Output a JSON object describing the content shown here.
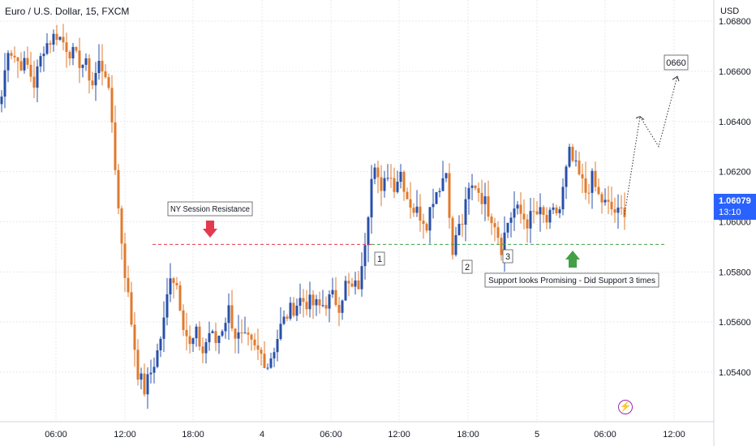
{
  "symbol_title": "Euro / U.S. Dollar, 15, FXCM",
  "currency": "USD",
  "current_price": "1.06079",
  "countdown": "13:10",
  "colors": {
    "up": "#2950a8",
    "down": "#e07a2c",
    "resistance": "#e53950",
    "support": "#43a047",
    "current_price_tag": "#2962ff",
    "grid": "#e6e9f0",
    "flash_icon": "#9c27b0"
  },
  "icons": {
    "flash": "lightning-bolt-icon"
  },
  "chart_data": {
    "type": "candlestick",
    "y_axis": {
      "ticks": [
        "1.06800",
        "1.06600",
        "1.06400",
        "1.06200",
        "1.06000",
        "1.05800",
        "1.05600",
        "1.05400"
      ],
      "ylim": [
        1.0524,
        1.0688
      ]
    },
    "x_axis": {
      "ticks": [
        "06:00",
        "12:00",
        "18:00",
        "4",
        "06:00",
        "12:00",
        "18:00",
        "5",
        "06:00",
        "12:00"
      ]
    },
    "grid": true,
    "levels": [
      {
        "name": "NY Session Resistance",
        "price": 1.0591,
        "style": "dashed",
        "color": "#e53950"
      },
      {
        "name": "Support",
        "price": 1.0591,
        "style": "dashed",
        "color": "#43a047"
      }
    ],
    "annotations": [
      {
        "text": "NY Session Resistance",
        "type": "callout",
        "arrow": "down"
      },
      {
        "text": "Support looks Promising - Did Support 3 times",
        "type": "callout",
        "arrow": "up"
      },
      {
        "text": "1",
        "type": "touch-label"
      },
      {
        "text": "2",
        "type": "touch-label"
      },
      {
        "text": "3",
        "type": "touch-label"
      },
      {
        "text": "0660",
        "type": "target-label"
      }
    ],
    "projection": {
      "style": "dotted",
      "path_prices": [
        1.0603,
        1.0642,
        1.063,
        1.0658
      ]
    },
    "waypoints": [
      {
        "t": 0,
        "p": 1.065
      },
      {
        "t": 2,
        "p": 1.067
      },
      {
        "t": 5,
        "p": 1.0664
      },
      {
        "t": 8,
        "p": 1.0662
      },
      {
        "t": 10,
        "p": 1.0655
      },
      {
        "t": 13,
        "p": 1.067
      },
      {
        "t": 17,
        "p": 1.0675
      },
      {
        "t": 20,
        "p": 1.067
      },
      {
        "t": 23,
        "p": 1.0665
      },
      {
        "t": 26,
        "p": 1.0662
      },
      {
        "t": 28,
        "p": 1.0655
      },
      {
        "t": 30,
        "p": 1.0663
      },
      {
        "t": 32,
        "p": 1.066
      },
      {
        "t": 34,
        "p": 1.064
      },
      {
        "t": 36,
        "p": 1.0605
      },
      {
        "t": 38,
        "p": 1.058
      },
      {
        "t": 40,
        "p": 1.056
      },
      {
        "t": 42,
        "p": 1.054
      },
      {
        "t": 44,
        "p": 1.0533
      },
      {
        "t": 46,
        "p": 1.054
      },
      {
        "t": 48,
        "p": 1.0548
      },
      {
        "t": 50,
        "p": 1.056
      },
      {
        "t": 52,
        "p": 1.058
      },
      {
        "t": 54,
        "p": 1.0575
      },
      {
        "t": 56,
        "p": 1.056
      },
      {
        "t": 58,
        "p": 1.055
      },
      {
        "t": 60,
        "p": 1.0555
      },
      {
        "t": 62,
        "p": 1.0548
      },
      {
        "t": 64,
        "p": 1.0556
      },
      {
        "t": 66,
        "p": 1.0552
      },
      {
        "t": 68,
        "p": 1.0558
      },
      {
        "t": 70,
        "p": 1.0565
      },
      {
        "t": 72,
        "p": 1.0555
      },
      {
        "t": 74,
        "p": 1.0553
      },
      {
        "t": 76,
        "p": 1.0552
      },
      {
        "t": 78,
        "p": 1.0549
      },
      {
        "t": 80,
        "p": 1.0547
      },
      {
        "t": 82,
        "p": 1.0543
      },
      {
        "t": 84,
        "p": 1.055
      },
      {
        "t": 86,
        "p": 1.0558
      },
      {
        "t": 88,
        "p": 1.0563
      },
      {
        "t": 90,
        "p": 1.0566
      },
      {
        "t": 92,
        "p": 1.0569
      },
      {
        "t": 94,
        "p": 1.0568
      },
      {
        "t": 96,
        "p": 1.0567
      },
      {
        "t": 98,
        "p": 1.0566
      },
      {
        "t": 100,
        "p": 1.0568
      },
      {
        "t": 102,
        "p": 1.057
      },
      {
        "t": 104,
        "p": 1.0567
      },
      {
        "t": 106,
        "p": 1.0575
      },
      {
        "t": 108,
        "p": 1.0573
      },
      {
        "t": 110,
        "p": 1.0575
      },
      {
        "t": 111,
        "p": 1.058
      },
      {
        "t": 112,
        "p": 1.0593
      },
      {
        "t": 113,
        "p": 1.0605
      },
      {
        "t": 114,
        "p": 1.062
      },
      {
        "t": 115,
        "p": 1.0625
      },
      {
        "t": 117,
        "p": 1.061
      },
      {
        "t": 119,
        "p": 1.062
      },
      {
        "t": 121,
        "p": 1.0615
      },
      {
        "t": 123,
        "p": 1.062
      },
      {
        "t": 125,
        "p": 1.061
      },
      {
        "t": 127,
        "p": 1.0605
      },
      {
        "t": 129,
        "p": 1.0603
      },
      {
        "t": 131,
        "p": 1.06
      },
      {
        "t": 133,
        "p": 1.061
      },
      {
        "t": 135,
        "p": 1.0615
      },
      {
        "t": 137,
        "p": 1.062
      },
      {
        "t": 138,
        "p": 1.0605
      },
      {
        "t": 139,
        "p": 1.0585
      },
      {
        "t": 140,
        "p": 1.0595
      },
      {
        "t": 142,
        "p": 1.06
      },
      {
        "t": 144,
        "p": 1.0612
      },
      {
        "t": 146,
        "p": 1.0615
      },
      {
        "t": 148,
        "p": 1.061
      },
      {
        "t": 150,
        "p": 1.0605
      },
      {
        "t": 152,
        "p": 1.06
      },
      {
        "t": 154,
        "p": 1.059
      },
      {
        "t": 156,
        "p": 1.06
      },
      {
        "t": 158,
        "p": 1.0605
      },
      {
        "t": 160,
        "p": 1.0603
      },
      {
        "t": 162,
        "p": 1.06
      },
      {
        "t": 164,
        "p": 1.0603
      },
      {
        "t": 166,
        "p": 1.0603
      },
      {
        "t": 168,
        "p": 1.06
      },
      {
        "t": 170,
        "p": 1.0603
      },
      {
        "t": 172,
        "p": 1.0605
      },
      {
        "t": 174,
        "p": 1.062
      },
      {
        "t": 175,
        "p": 1.0627
      },
      {
        "t": 176,
        "p": 1.0624
      },
      {
        "t": 178,
        "p": 1.0618
      },
      {
        "t": 180,
        "p": 1.0612
      },
      {
        "t": 182,
        "p": 1.0617
      },
      {
        "t": 184,
        "p": 1.061
      },
      {
        "t": 186,
        "p": 1.0607
      },
      {
        "t": 188,
        "p": 1.0605
      },
      {
        "t": 190,
        "p": 1.0603
      },
      {
        "t": 192,
        "p": 1.0605
      }
    ]
  }
}
